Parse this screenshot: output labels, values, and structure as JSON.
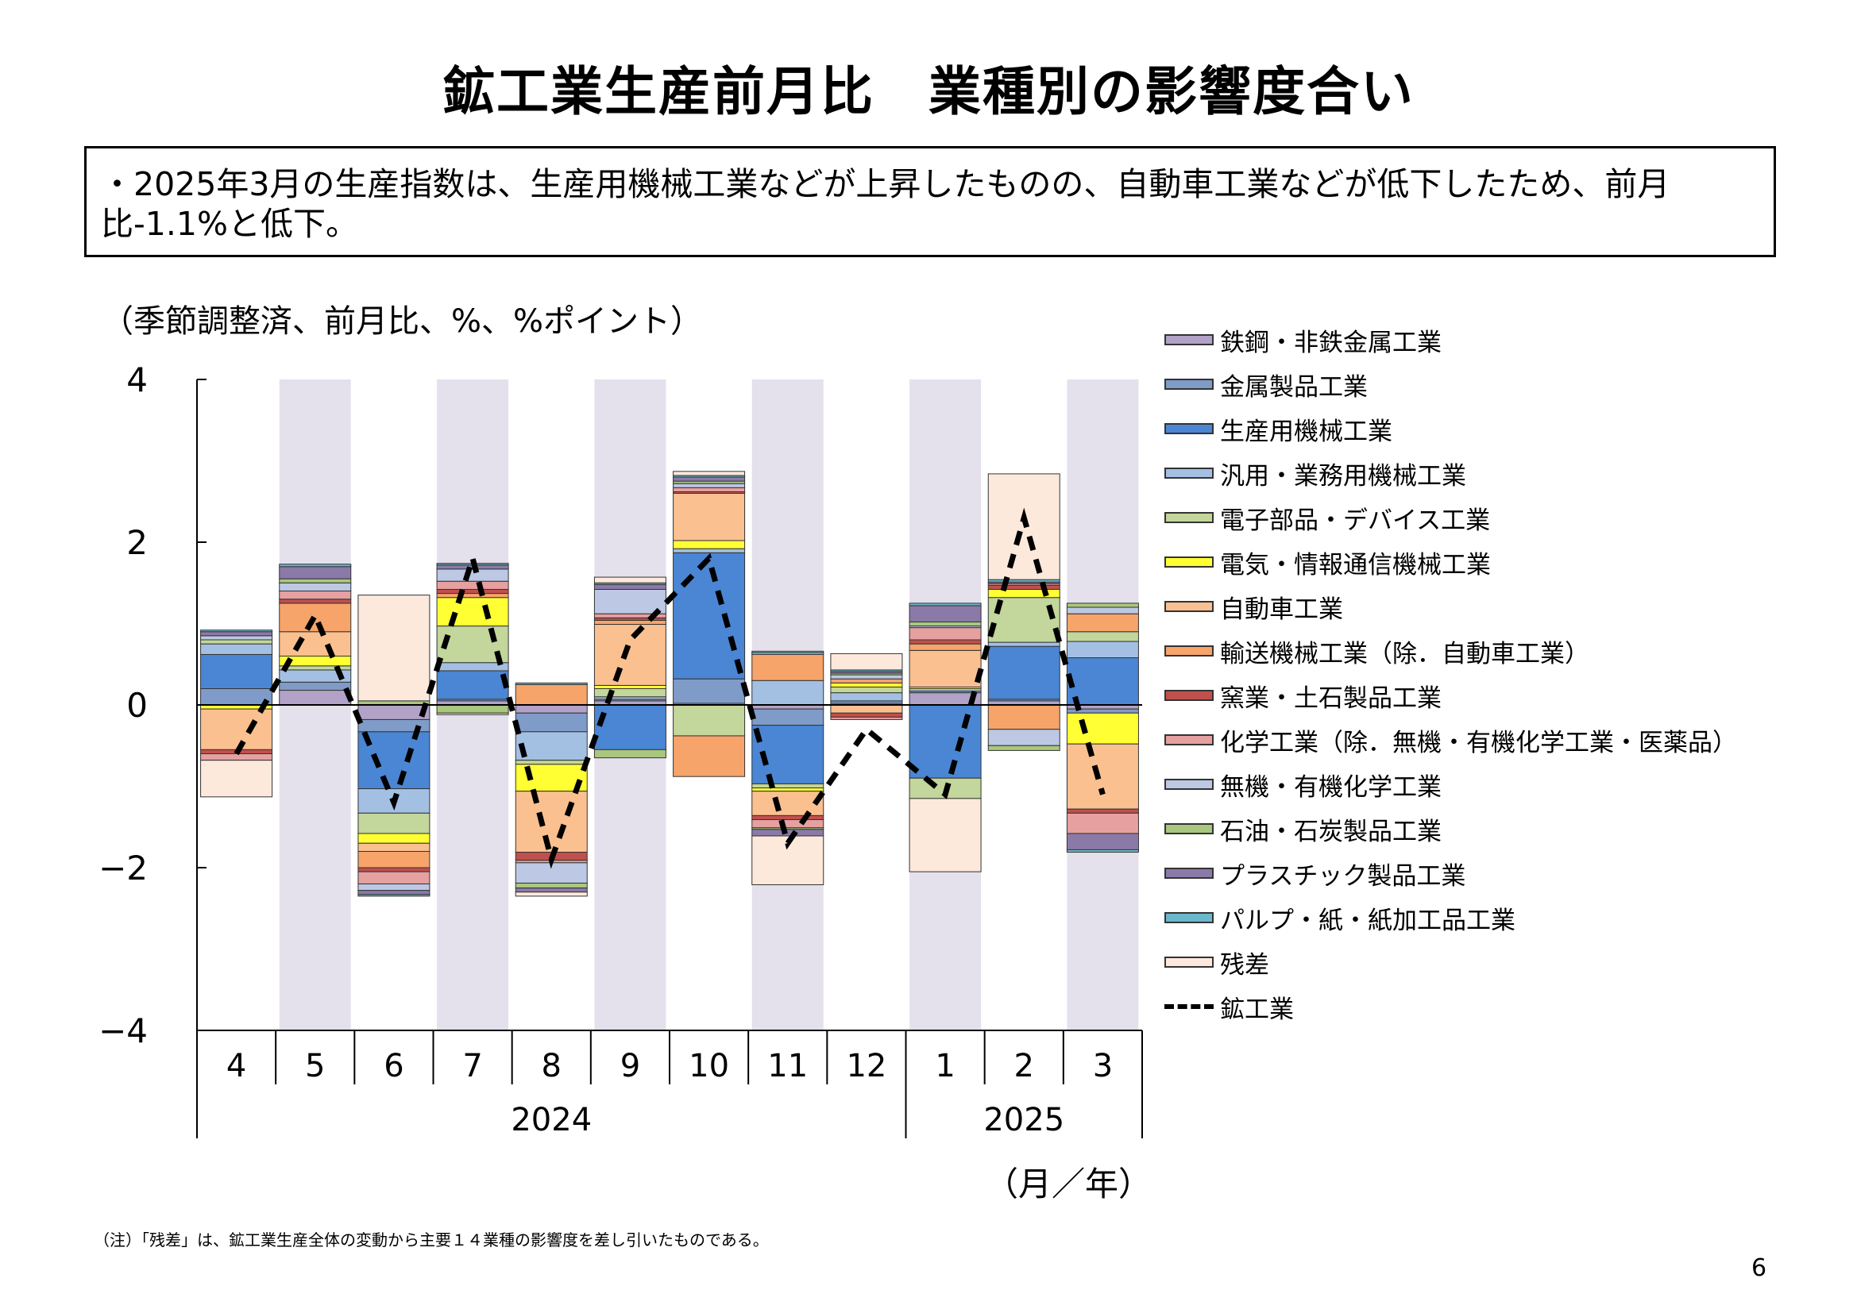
{
  "page": {
    "title": "鉱工業生産前月比　業種別の影響度合い",
    "summary": "・2025年3月の生産指数は、生産用機械工業などが上昇したものの、自動車工業などが低下したため、前月比-1.1%と低下。",
    "unit_label": "（季節調整済、前月比、%、%ポイント）",
    "month_year_label": "（月／年）",
    "note": "（注）「残差」は、鉱工業生産全体の変動から主要１４業種の影響度を差し引いたものである。",
    "page_number": "6"
  },
  "chart_data": {
    "type": "bar",
    "stacked": true,
    "categories": [
      "4",
      "5",
      "6",
      "7",
      "8",
      "9",
      "10",
      "11",
      "12",
      "1",
      "2",
      "3"
    ],
    "year_labels": [
      {
        "label": "2024",
        "from_index": 0,
        "to_index": 8
      },
      {
        "label": "2025",
        "from_index": 9,
        "to_index": 11
      }
    ],
    "y_ticks": [
      "4",
      "2",
      "0",
      "−2",
      "−4"
    ],
    "ylim": [
      -4,
      4
    ],
    "shaded_category_indices": [
      1,
      3,
      5,
      7,
      9,
      11
    ],
    "shade_color": "#e4e0ec",
    "series": [
      {
        "name": "鉄鋼・非鉄金属工業",
        "color": "#b3a2c7",
        "values": [
          0.0,
          0.18,
          -0.18,
          0.05,
          -0.1,
          0.05,
          0.02,
          -0.05,
          0.02,
          0.15,
          0.05,
          -0.05
        ]
      },
      {
        "name": "金属製品工業",
        "color": "#7f9bc8",
        "values": [
          0.2,
          0.1,
          -0.15,
          0.02,
          -0.23,
          0.02,
          0.3,
          -0.2,
          0.03,
          0.02,
          0.02,
          -0.05
        ]
      },
      {
        "name": "生産用機械工業",
        "color": "#4a86d4",
        "values": [
          0.42,
          0.0,
          -0.7,
          0.35,
          0.0,
          -0.55,
          1.55,
          -0.72,
          0.0,
          -0.9,
          0.65,
          0.58
        ]
      },
      {
        "name": "汎用・業務用機械工業",
        "color": "#a3c0e3",
        "values": [
          0.13,
          0.15,
          -0.3,
          0.1,
          -0.35,
          0.03,
          0.05,
          0.3,
          0.1,
          0.03,
          0.05,
          0.2
        ]
      },
      {
        "name": "電子部品・デバイス工業",
        "color": "#c3d69b",
        "values": [
          0.05,
          0.05,
          -0.25,
          0.45,
          -0.05,
          0.1,
          -0.38,
          -0.05,
          0.07,
          -0.25,
          0.55,
          0.12
        ]
      },
      {
        "name": "電気・情報通信機械工業",
        "color": "#ffff33",
        "values": [
          -0.05,
          0.12,
          -0.12,
          0.35,
          -0.33,
          0.04,
          0.1,
          -0.04,
          0.05,
          0.02,
          0.1,
          -0.38
        ]
      },
      {
        "name": "自動車工業",
        "color": "#fac090",
        "values": [
          -0.5,
          0.3,
          -0.1,
          0.0,
          -0.75,
          0.75,
          0.58,
          -0.3,
          -0.1,
          0.45,
          0.0,
          -0.8
        ]
      },
      {
        "name": "輸送機械工業（除．自動車工業）",
        "color": "#f6a46a",
        "values": [
          0.0,
          0.35,
          -0.2,
          0.05,
          0.25,
          0.05,
          -0.5,
          0.32,
          0.05,
          0.08,
          -0.3,
          0.22
        ]
      },
      {
        "name": "窯業・土石製品工業",
        "color": "#c0504d",
        "values": [
          -0.05,
          0.05,
          -0.05,
          0.05,
          -0.1,
          0.03,
          0.02,
          -0.05,
          -0.05,
          0.05,
          0.05,
          -0.05
        ]
      },
      {
        "name": "化学工業（除．無機・有機化学工業・医薬品）",
        "color": "#e6a0a0",
        "values": [
          -0.08,
          0.1,
          -0.15,
          0.1,
          -0.03,
          0.05,
          0.05,
          -0.1,
          -0.03,
          0.15,
          0.02,
          -0.25
        ]
      },
      {
        "name": "無機・有機化学工業",
        "color": "#bcc8e4",
        "values": [
          0.05,
          0.1,
          -0.08,
          0.15,
          -0.25,
          0.3,
          0.05,
          0.02,
          0.05,
          0.02,
          -0.2,
          0.08
        ]
      },
      {
        "name": "石油・石炭製品工業",
        "color": "#a9c77e",
        "values": [
          0.0,
          0.05,
          0.05,
          -0.1,
          -0.06,
          -0.1,
          0.03,
          -0.02,
          0.02,
          0.05,
          -0.06,
          0.05
        ]
      },
      {
        "name": "プラスチック製品工業",
        "color": "#8b7aa8",
        "values": [
          0.05,
          0.15,
          -0.05,
          0.05,
          -0.05,
          0.06,
          0.05,
          -0.08,
          0.02,
          0.2,
          0.02,
          -0.2
        ]
      },
      {
        "name": "パルプ・紙・紙加工品工業",
        "color": "#6bb8cc",
        "values": [
          0.02,
          0.03,
          -0.02,
          0.02,
          0.02,
          0.02,
          0.02,
          0.02,
          0.02,
          0.03,
          0.03,
          -0.03
        ]
      },
      {
        "name": "残差",
        "color": "#fce9dc",
        "values": [
          -0.45,
          0.0,
          1.3,
          -0.02,
          -0.05,
          0.07,
          0.05,
          -0.6,
          0.2,
          -0.9,
          1.3,
          0.0
        ]
      }
    ],
    "line": {
      "name": "鉱工業",
      "values": [
        -0.6,
        1.1,
        -1.2,
        1.8,
        -1.9,
        0.8,
        1.8,
        -1.7,
        -0.3,
        -1.1,
        2.3,
        -1.1
      ]
    }
  }
}
